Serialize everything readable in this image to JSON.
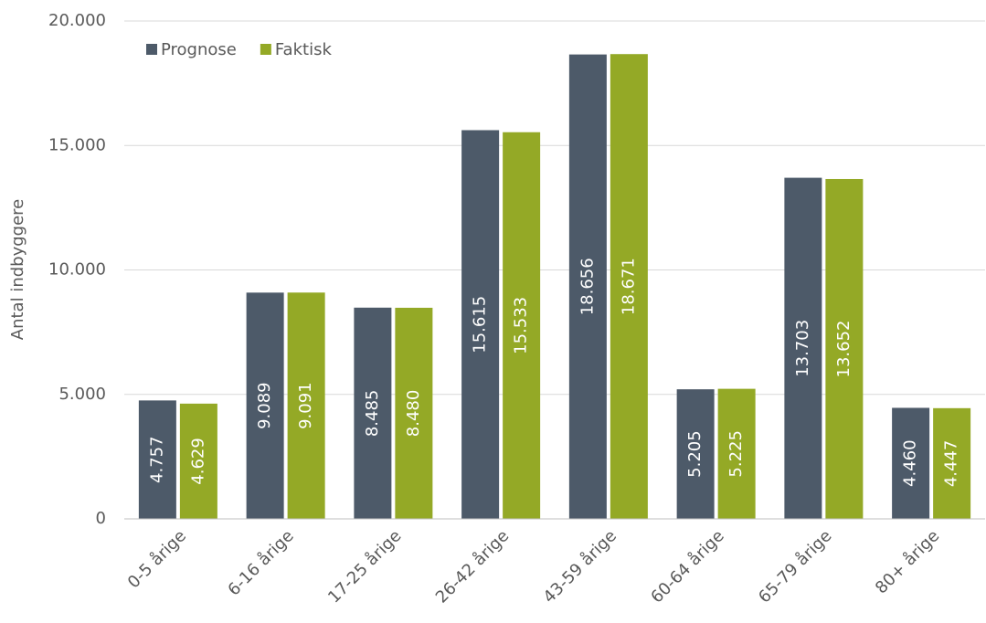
{
  "chart_data": {
    "type": "bar",
    "y_label": "Antal indbyggere",
    "categories": [
      "0-5 årige",
      "6-16 årige",
      "17-25 årige",
      "26-42 årige",
      "43-59 årige",
      "60-64 årige",
      "65-79 årige",
      "80+ årige"
    ],
    "series": [
      {
        "name": "Prognose",
        "color": "#4d5a69",
        "values": [
          4757,
          9089,
          8485,
          15615,
          18656,
          5205,
          13703,
          4460
        ],
        "value_labels": [
          "4.757",
          "9.089",
          "8.485",
          "15.615",
          "18.656",
          "5.205",
          "13.703",
          "4.460"
        ]
      },
      {
        "name": "Faktisk",
        "color": "#94a926",
        "values": [
          4629,
          9091,
          8480,
          15533,
          18671,
          5225,
          13652,
          4447
        ],
        "value_labels": [
          "4.629",
          "9.091",
          "8.480",
          "15.533",
          "18.671",
          "5.225",
          "13.652",
          "4.447"
        ]
      }
    ],
    "ylim": [
      0,
      20000
    ],
    "yticks": [
      0,
      {
        "value": 5000,
        "label": "5.000"
      },
      {
        "value": 10000,
        "label": "10.000"
      },
      {
        "value": 15000,
        "label": "15.000"
      },
      {
        "value": 20000,
        "label": "20.000"
      }
    ],
    "grid": true,
    "legend": "top-left"
  }
}
